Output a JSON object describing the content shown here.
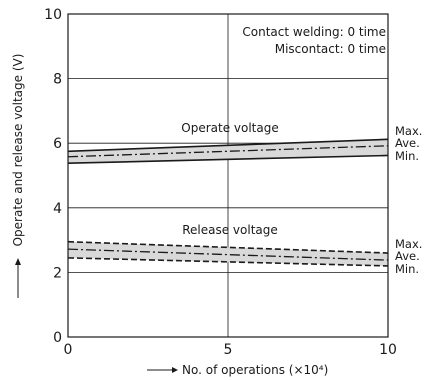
{
  "chart_data": {
    "type": "line",
    "xlabel": "No. of operations (×10⁴)",
    "ylabel": "Operate and release voltage (V)",
    "xlim": [
      0,
      10
    ],
    "ylim": [
      0,
      10
    ],
    "x_ticks": [
      "0",
      "5",
      "10"
    ],
    "y_ticks": [
      "0",
      "2",
      "4",
      "6",
      "8",
      "10"
    ],
    "grid": true,
    "notes": [
      "Contact welding: 0 time",
      "Miscontact: 0 time"
    ],
    "series_labels": [
      "Operate voltage",
      "Release voltage"
    ],
    "band_tags": [
      "Max.",
      "Ave.",
      "Min."
    ],
    "colors": {
      "band_fill": "#d9d9d9",
      "line": "#1a1a1a",
      "grid": "#1a1a1a"
    },
    "series": [
      {
        "group": "operate",
        "stat": "max",
        "x": [
          0,
          10
        ],
        "y": [
          5.75,
          6.12
        ],
        "style": "solid"
      },
      {
        "group": "operate",
        "stat": "ave",
        "x": [
          0,
          10
        ],
        "y": [
          5.58,
          5.92
        ],
        "style": "dashdot"
      },
      {
        "group": "operate",
        "stat": "min",
        "x": [
          0,
          10
        ],
        "y": [
          5.38,
          5.62
        ],
        "style": "solid"
      },
      {
        "group": "release",
        "stat": "max",
        "x": [
          0,
          10
        ],
        "y": [
          2.95,
          2.6
        ],
        "style": "dashed"
      },
      {
        "group": "release",
        "stat": "ave",
        "x": [
          0,
          10
        ],
        "y": [
          2.72,
          2.38
        ],
        "style": "dashdot"
      },
      {
        "group": "release",
        "stat": "min",
        "x": [
          0,
          10
        ],
        "y": [
          2.45,
          2.2
        ],
        "style": "dashed"
      }
    ]
  }
}
